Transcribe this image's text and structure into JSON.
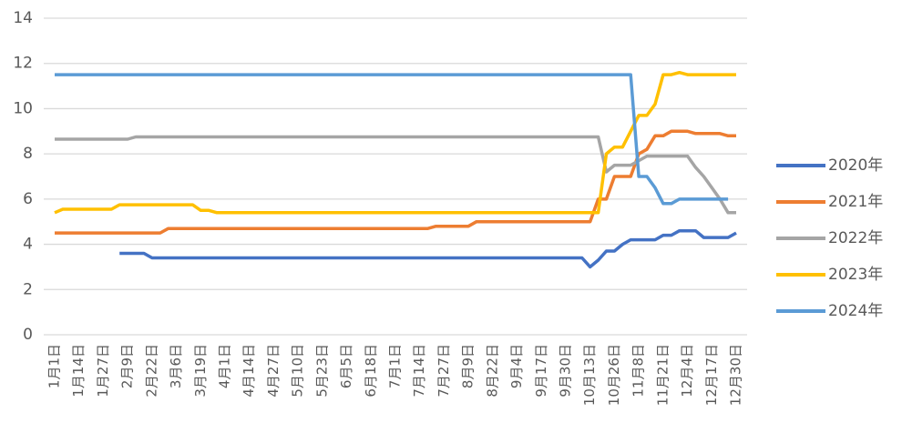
{
  "chart_data": {
    "type": "line",
    "categories": [
      "1月1日",
      null,
      null,
      "1月14日",
      null,
      null,
      "1月27日",
      null,
      null,
      "2月9日",
      null,
      null,
      "2月22日",
      null,
      null,
      "3月6日",
      null,
      null,
      "3月19日",
      null,
      null,
      "4月1日",
      null,
      null,
      "4月14日",
      null,
      null,
      "4月27日",
      null,
      null,
      "5月10日",
      null,
      null,
      "5月23日",
      null,
      null,
      "6月5日",
      null,
      null,
      "6月18日",
      null,
      null,
      "7月1日",
      null,
      null,
      "7月14日",
      null,
      null,
      "7月27日",
      null,
      null,
      "8月9日",
      null,
      null,
      "8月22日",
      null,
      null,
      "9月4日",
      null,
      null,
      "9月17日",
      null,
      null,
      "9月30日",
      null,
      null,
      "10月13日",
      null,
      null,
      "10月26日",
      null,
      null,
      "11月8日",
      null,
      null,
      "11月21日",
      null,
      null,
      "12月4日",
      null,
      null,
      "12月17日",
      null,
      null,
      "12月30日"
    ],
    "series": [
      {
        "name": "2020年",
        "color": "#4472c4",
        "values": [
          null,
          null,
          null,
          null,
          null,
          null,
          null,
          null,
          3.6,
          3.6,
          3.6,
          3.6,
          3.4,
          3.4,
          3.4,
          3.4,
          3.4,
          3.4,
          3.4,
          3.4,
          3.4,
          3.4,
          3.4,
          3.4,
          3.4,
          3.4,
          3.4,
          3.4,
          3.4,
          3.4,
          3.4,
          3.4,
          3.4,
          3.4,
          3.4,
          3.4,
          3.4,
          3.4,
          3.4,
          3.4,
          3.4,
          3.4,
          3.4,
          3.4,
          3.4,
          3.4,
          3.4,
          3.4,
          3.4,
          3.4,
          3.4,
          3.4,
          3.4,
          3.4,
          3.4,
          3.4,
          3.4,
          3.4,
          3.4,
          3.4,
          3.4,
          3.4,
          3.4,
          3.4,
          3.4,
          3.4,
          3.0,
          3.3,
          3.7,
          3.7,
          4.0,
          4.2,
          4.2,
          4.2,
          4.2,
          4.4,
          4.4,
          4.6,
          4.6,
          4.6,
          4.3,
          4.3,
          4.3,
          4.3,
          4.5
        ]
      },
      {
        "name": "2021年",
        "color": "#ed7d31",
        "values": [
          4.5,
          4.5,
          4.5,
          4.5,
          4.5,
          4.5,
          4.5,
          4.5,
          4.5,
          4.5,
          4.5,
          4.5,
          4.5,
          4.5,
          4.7,
          4.7,
          4.7,
          4.7,
          4.7,
          4.7,
          4.7,
          4.7,
          4.7,
          4.7,
          4.7,
          4.7,
          4.7,
          4.7,
          4.7,
          4.7,
          4.7,
          4.7,
          4.7,
          4.7,
          4.7,
          4.7,
          4.7,
          4.7,
          4.7,
          4.7,
          4.7,
          4.7,
          4.7,
          4.7,
          4.7,
          4.7,
          4.7,
          4.8,
          4.8,
          4.8,
          4.8,
          4.8,
          5.0,
          5.0,
          5.0,
          5.0,
          5.0,
          5.0,
          5.0,
          5.0,
          5.0,
          5.0,
          5.0,
          5.0,
          5.0,
          5.0,
          5.0,
          6.0,
          6.0,
          7.0,
          7.0,
          7.0,
          8.0,
          8.2,
          8.8,
          8.8,
          9.0,
          9.0,
          9.0,
          8.9,
          8.9,
          8.9,
          8.9,
          8.8,
          8.8
        ]
      },
      {
        "name": "2022年",
        "color": "#a5a5a5",
        "values": [
          8.65,
          8.65,
          8.65,
          8.65,
          8.65,
          8.65,
          8.65,
          8.65,
          8.65,
          8.65,
          8.75,
          8.75,
          8.75,
          8.75,
          8.75,
          8.75,
          8.75,
          8.75,
          8.75,
          8.75,
          8.75,
          8.75,
          8.75,
          8.75,
          8.75,
          8.75,
          8.75,
          8.75,
          8.75,
          8.75,
          8.75,
          8.75,
          8.75,
          8.75,
          8.75,
          8.75,
          8.75,
          8.75,
          8.75,
          8.75,
          8.75,
          8.75,
          8.75,
          8.75,
          8.75,
          8.75,
          8.75,
          8.75,
          8.75,
          8.75,
          8.75,
          8.75,
          8.75,
          8.75,
          8.75,
          8.75,
          8.75,
          8.75,
          8.75,
          8.75,
          8.75,
          8.75,
          8.75,
          8.75,
          8.75,
          8.75,
          8.75,
          8.75,
          7.2,
          7.5,
          7.5,
          7.5,
          7.7,
          7.9,
          7.9,
          7.9,
          7.9,
          7.9,
          7.9,
          7.4,
          7.0,
          6.5,
          6.0,
          5.4,
          5.4
        ]
      },
      {
        "name": "2023年",
        "color": "#ffc000",
        "values": [
          5.4,
          5.55,
          5.55,
          5.55,
          5.55,
          5.55,
          5.55,
          5.55,
          5.75,
          5.75,
          5.75,
          5.75,
          5.75,
          5.75,
          5.75,
          5.75,
          5.75,
          5.75,
          5.5,
          5.5,
          5.4,
          5.4,
          5.4,
          5.4,
          5.4,
          5.4,
          5.4,
          5.4,
          5.4,
          5.4,
          5.4,
          5.4,
          5.4,
          5.4,
          5.4,
          5.4,
          5.4,
          5.4,
          5.4,
          5.4,
          5.4,
          5.4,
          5.4,
          5.4,
          5.4,
          5.4,
          5.4,
          5.4,
          5.4,
          5.4,
          5.4,
          5.4,
          5.4,
          5.4,
          5.4,
          5.4,
          5.4,
          5.4,
          5.4,
          5.4,
          5.4,
          5.4,
          5.4,
          5.4,
          5.4,
          5.4,
          5.4,
          5.4,
          8.0,
          8.3,
          8.3,
          9.0,
          9.7,
          9.7,
          10.2,
          11.5,
          11.5,
          11.6,
          11.5,
          11.5,
          11.5,
          11.5,
          11.5,
          11.5,
          11.5
        ]
      },
      {
        "name": "2024年",
        "color": "#5b9bd5",
        "values": [
          11.5,
          11.5,
          11.5,
          11.5,
          11.5,
          11.5,
          11.5,
          11.5,
          11.5,
          11.5,
          11.5,
          11.5,
          11.5,
          11.5,
          11.5,
          11.5,
          11.5,
          11.5,
          11.5,
          11.5,
          11.5,
          11.5,
          11.5,
          11.5,
          11.5,
          11.5,
          11.5,
          11.5,
          11.5,
          11.5,
          11.5,
          11.5,
          11.5,
          11.5,
          11.5,
          11.5,
          11.5,
          11.5,
          11.5,
          11.5,
          11.5,
          11.5,
          11.5,
          11.5,
          11.5,
          11.5,
          11.5,
          11.5,
          11.5,
          11.5,
          11.5,
          11.5,
          11.5,
          11.5,
          11.5,
          11.5,
          11.5,
          11.5,
          11.5,
          11.5,
          11.5,
          11.5,
          11.5,
          11.5,
          11.5,
          11.5,
          11.5,
          11.5,
          11.5,
          11.5,
          11.5,
          11.5,
          7.0,
          7.0,
          6.5,
          5.8,
          5.8,
          6.0,
          6.0,
          6.0,
          6.0,
          6.0,
          6.0,
          6.0,
          null
        ]
      }
    ],
    "ylim": [
      0,
      14
    ],
    "yticks": [
      0,
      2,
      4,
      6,
      8,
      10,
      12,
      14
    ],
    "grid": true,
    "legend": "right"
  }
}
